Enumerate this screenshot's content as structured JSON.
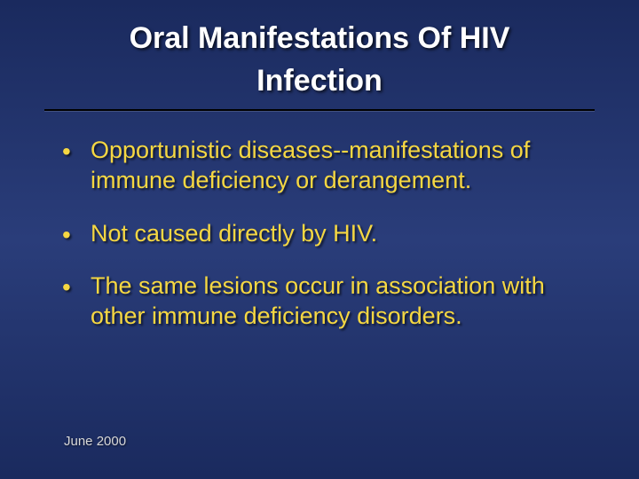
{
  "slide": {
    "background_gradient": [
      "#1a2a5e",
      "#2a3d7a",
      "#1a2a5e"
    ],
    "title": {
      "line1": "Oral Manifestations Of HIV",
      "line2": "Infection",
      "color": "#ffffff",
      "fontsize": 34,
      "fontweight": "bold"
    },
    "divider_color": "#000000",
    "bullets": {
      "color": "#f5d742",
      "fontsize": 27,
      "items": [
        "Opportunistic diseases--manifestations of immune deficiency or derangement.",
        " Not caused directly by HIV.",
        "The same lesions occur in association with other immune deficiency disorders."
      ]
    },
    "footer": {
      "text": "June 2000",
      "color": "#d8d8d8",
      "fontsize": 15
    }
  }
}
